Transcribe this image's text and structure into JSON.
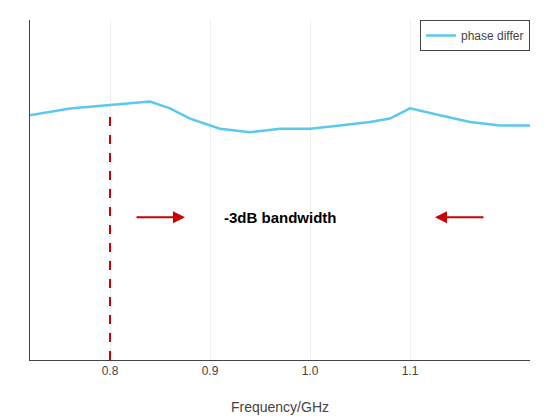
{
  "chart_data": {
    "type": "line",
    "xlabel": "Frequency/GHz",
    "xlim": [
      0.72,
      1.22
    ],
    "ylim": [
      0.0,
      1.0
    ],
    "xticks": [
      0.8,
      0.9,
      {
        "value": 1.0,
        "label": "1.0"
      },
      1.1
    ],
    "yticks": [],
    "tick_labels": "x",
    "grid": true,
    "legend": "upper right",
    "x": [
      0.72,
      0.76,
      0.8,
      0.84,
      0.86,
      0.88,
      0.91,
      0.94,
      0.97,
      1.0,
      1.03,
      1.06,
      1.08,
      1.1,
      1.13,
      1.16,
      1.19,
      1.22
    ],
    "series": [
      {
        "name": "phase differ",
        "color": "#5bc8f0",
        "values": [
          0.72,
          0.74,
          0.75,
          0.76,
          0.74,
          0.71,
          0.68,
          0.67,
          0.68,
          0.68,
          0.69,
          0.7,
          0.71,
          0.74,
          0.72,
          0.7,
          0.69,
          0.69
        ]
      }
    ],
    "annotations": [
      {
        "text": "-3dB bandwidth",
        "x": 0.97,
        "y": 0.42
      }
    ],
    "arrows": [
      {
        "x_tail": 0.825,
        "x_head": 0.875,
        "y": 0.42,
        "color": "#cc0000"
      },
      {
        "x_tail": 1.175,
        "x_head": 1.125,
        "y": 0.42,
        "color": "#cc0000"
      }
    ],
    "vlines": [
      {
        "x": 0.8,
        "y": [
          0.0,
          0.73
        ],
        "color": "#cc0000",
        "line_style": "dashed"
      }
    ]
  }
}
